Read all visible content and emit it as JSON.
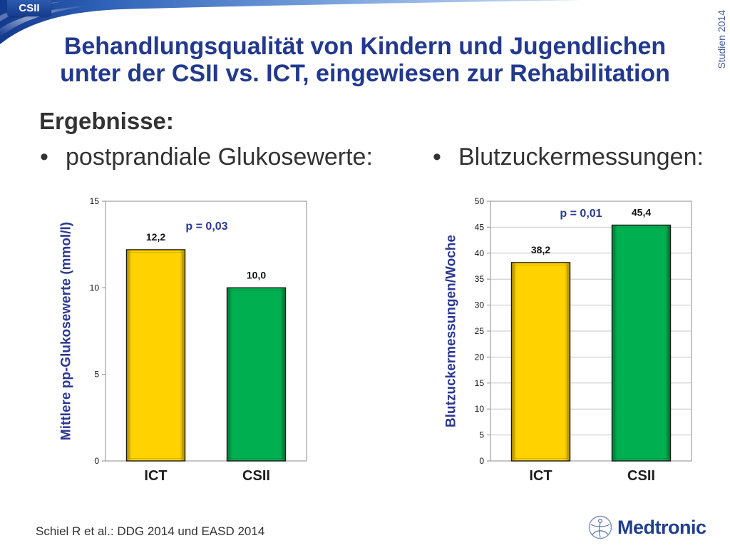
{
  "header": {
    "tab_label": "CSII",
    "side_label": "Studien 2014",
    "title_lines": [
      "Behandlungsqualität von Kindern und Jugendlichen",
      "unter der CSII vs. ICT, eingewiesen zur Rehabilitation"
    ]
  },
  "results": {
    "heading": "Ergebnisse:",
    "bullets": [
      {
        "marker": "•",
        "text": "postprandiale Glukosewerte:"
      },
      {
        "marker": "•",
        "text": "Blutzuckermessungen:"
      }
    ]
  },
  "chart_data": [
    {
      "type": "bar",
      "categories": [
        "ICT",
        "CSII"
      ],
      "values": [
        12.2,
        10.0
      ],
      "data_labels": [
        "12,2",
        "10,0"
      ],
      "ylabel": "Mittlere pp-Glukosewerte (mmol/l)",
      "ylim": [
        0,
        15
      ],
      "yticks": [
        0,
        5,
        10,
        15
      ],
      "annotation": "p = 0,03",
      "bar_colors": [
        "#FFD200",
        "#00B050"
      ],
      "grid": false
    },
    {
      "type": "bar",
      "categories": [
        "ICT",
        "CSII"
      ],
      "values": [
        38.2,
        45.4
      ],
      "data_labels": [
        "38,2",
        "45,4"
      ],
      "ylabel": "Blutzuckermessungen/Woche",
      "ylim": [
        0,
        50
      ],
      "yticks": [
        0,
        5,
        10,
        15,
        20,
        25,
        30,
        35,
        40,
        45,
        50
      ],
      "annotation": "p = 0,01",
      "bar_colors": [
        "#FFD200",
        "#00B050"
      ],
      "grid": true
    }
  ],
  "footer": {
    "citation": "Schiel R et al.: DDG 2014 und EASD 2014",
    "logo_wordmark": "Medtronic"
  },
  "colors": {
    "title": "#22398D",
    "accent_blue": "#2B3990",
    "body_text": "#333333",
    "logo": "#1F3F8F"
  }
}
